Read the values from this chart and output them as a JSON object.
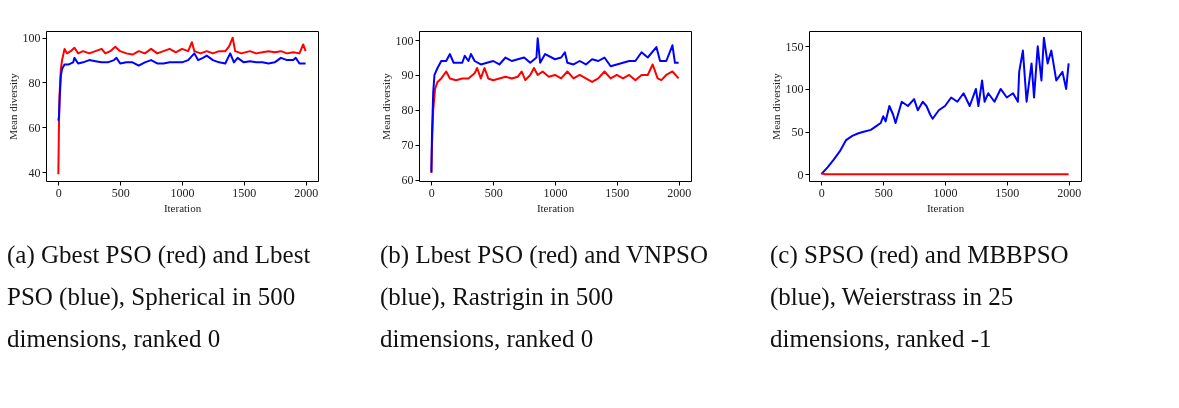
{
  "chart_data": [
    {
      "type": "line",
      "xlabel": "Iteration",
      "ylabel": "Mean diversity",
      "xlim": [
        -100,
        2100
      ],
      "xticks": [
        0,
        500,
        1000,
        1500,
        2000
      ],
      "ylim": [
        36,
        103
      ],
      "yticks": [
        40,
        60,
        80,
        100
      ],
      "annotations": [
        "(a) Gbest PSO (red) and Lbest PSO (blue), Spherical in 500 dimensions, ranked 0"
      ],
      "series": [
        {
          "color": "#ff0000",
          "x": [
            0,
            5,
            10,
            20,
            30,
            50,
            70,
            100,
            130,
            160,
            200,
            250,
            300,
            350,
            380,
            420,
            460,
            500,
            550,
            600,
            650,
            700,
            750,
            800,
            850,
            900,
            950,
            1000,
            1050,
            1080,
            1100,
            1150,
            1200,
            1250,
            1300,
            1350,
            1380,
            1410,
            1430,
            1480,
            1550,
            1600,
            1650,
            1700,
            1750,
            1800,
            1850,
            1900,
            1950,
            1980,
            2000
          ],
          "values": [
            39,
            62,
            75,
            86,
            90,
            95,
            93,
            94,
            95.5,
            93,
            94,
            93,
            94,
            95,
            93,
            94,
            96,
            94,
            93,
            92.5,
            94,
            93,
            95,
            93,
            94,
            95,
            93.5,
            95,
            94,
            98,
            94,
            93,
            94,
            93,
            94,
            94,
            96,
            100,
            94,
            93,
            94,
            93,
            93.5,
            94,
            93.5,
            94,
            93,
            93.5,
            93,
            97,
            94
          ]
        },
        {
          "color": "#0000ff",
          "x": [
            0,
            5,
            10,
            20,
            30,
            50,
            80,
            120,
            130,
            160,
            200,
            250,
            300,
            350,
            400,
            450,
            470,
            500,
            550,
            600,
            650,
            700,
            750,
            800,
            850,
            900,
            950,
            1000,
            1050,
            1100,
            1130,
            1170,
            1200,
            1250,
            1300,
            1350,
            1390,
            1420,
            1450,
            1500,
            1550,
            1600,
            1650,
            1700,
            1750,
            1800,
            1850,
            1900,
            1920,
            1950,
            2000
          ],
          "values": [
            63,
            65,
            72,
            83,
            86,
            88,
            88,
            89,
            91,
            88.5,
            89,
            90,
            89.5,
            89,
            89,
            90,
            91,
            88.5,
            89,
            89,
            87.5,
            89,
            90,
            88.5,
            88.5,
            89,
            89,
            89,
            90,
            93,
            90,
            91,
            92,
            90,
            89,
            88.5,
            93,
            89,
            91,
            89,
            89.5,
            89,
            89,
            88.5,
            89,
            91,
            90,
            90,
            91,
            88.5,
            88.5
          ]
        }
      ]
    },
    {
      "type": "line",
      "xlabel": "Iteration",
      "ylabel": "Mean diversity",
      "xlim": [
        -100,
        2100
      ],
      "xticks": [
        0,
        500,
        1000,
        1500,
        2000
      ],
      "ylim": [
        59.6,
        102.6
      ],
      "yticks": [
        60,
        70,
        80,
        90,
        100
      ],
      "annotations": [
        "(b) Lbest PSO (red) and VNPSO (blue), Rastrigin in 500 dimensions, ranked 0"
      ],
      "series": [
        {
          "color": "#ff0000",
          "x": [
            0,
            5,
            15,
            30,
            50,
            80,
            120,
            150,
            200,
            250,
            300,
            350,
            370,
            400,
            430,
            460,
            500,
            550,
            600,
            650,
            700,
            730,
            760,
            800,
            830,
            860,
            900,
            950,
            1000,
            1050,
            1100,
            1150,
            1200,
            1250,
            1300,
            1350,
            1400,
            1450,
            1500,
            1550,
            1600,
            1650,
            1700,
            1750,
            1790,
            1830,
            1860,
            1900,
            1950,
            2000
          ],
          "values": [
            62,
            70,
            80,
            86,
            88,
            89,
            91,
            89,
            88.5,
            89,
            89,
            90.5,
            92,
            89,
            92,
            89,
            88.5,
            89,
            89.5,
            89,
            89.5,
            91,
            88.5,
            90,
            92,
            90,
            91,
            89.5,
            90,
            89,
            91,
            89,
            90,
            89,
            88,
            89,
            91,
            89,
            90,
            89,
            90,
            88.5,
            90,
            90,
            93,
            89,
            88.5,
            90,
            91,
            89
          ]
        },
        {
          "color": "#0000ff",
          "x": [
            0,
            5,
            15,
            25,
            50,
            80,
            120,
            150,
            180,
            250,
            270,
            300,
            320,
            350,
            400,
            450,
            500,
            550,
            600,
            650,
            700,
            750,
            800,
            850,
            860,
            880,
            920,
            1000,
            1050,
            1080,
            1100,
            1150,
            1200,
            1250,
            1300,
            1350,
            1400,
            1450,
            1500,
            1550,
            1600,
            1650,
            1700,
            1750,
            1820,
            1850,
            1900,
            1950,
            1970,
            2000
          ],
          "values": [
            62,
            73,
            85,
            90,
            92,
            94,
            94,
            96,
            93.5,
            93.5,
            95.5,
            94,
            96,
            94,
            93,
            93.5,
            94,
            93,
            95,
            94,
            94.5,
            95,
            93.5,
            95,
            100.5,
            93.5,
            96,
            94.5,
            95,
            96.5,
            93.5,
            93,
            94,
            93,
            94.5,
            94,
            95,
            92.5,
            93,
            93.5,
            94,
            94,
            96.5,
            95,
            98,
            94,
            94,
            98.5,
            93.5,
            93.5
          ]
        }
      ]
    },
    {
      "type": "line",
      "xlabel": "Iteration",
      "ylabel": "Mean diversity",
      "xlim": [
        -100,
        2100
      ],
      "xticks": [
        0,
        500,
        1000,
        1500,
        2000
      ],
      "ylim": [
        -8,
        168
      ],
      "yticks": [
        0,
        50,
        100,
        150
      ],
      "annotations": [
        "(c) SPSO (red) and MBBPSO (blue), Weierstrass in 25 dimensions, ranked -1"
      ],
      "series": [
        {
          "color": "#0000ff",
          "x": [
            0,
            50,
            100,
            150,
            200,
            250,
            300,
            350,
            400,
            450,
            480,
            500,
            520,
            550,
            580,
            600,
            650,
            700,
            750,
            780,
            820,
            850,
            880,
            900,
            950,
            1000,
            1050,
            1100,
            1150,
            1200,
            1250,
            1270,
            1300,
            1320,
            1350,
            1400,
            1450,
            1500,
            1550,
            1590,
            1600,
            1630,
            1660,
            1700,
            1720,
            1750,
            1780,
            1800,
            1830,
            1860,
            1900,
            1950,
            1980,
            2000
          ],
          "values": [
            0,
            8,
            17,
            27,
            40,
            45,
            48,
            50,
            52,
            57,
            60,
            68,
            62,
            80,
            70,
            60,
            85,
            80,
            88,
            75,
            85,
            80,
            70,
            65,
            75,
            80,
            90,
            85,
            95,
            80,
            100,
            80,
            110,
            85,
            95,
            85,
            100,
            90,
            95,
            85,
            120,
            145,
            85,
            130,
            90,
            150,
            110,
            160,
            130,
            145,
            110,
            120,
            100,
            130
          ]
        },
        {
          "color": "#ff0000",
          "x": [
            0,
            30,
            2000
          ],
          "values": [
            1,
            0,
            0
          ]
        }
      ]
    }
  ]
}
